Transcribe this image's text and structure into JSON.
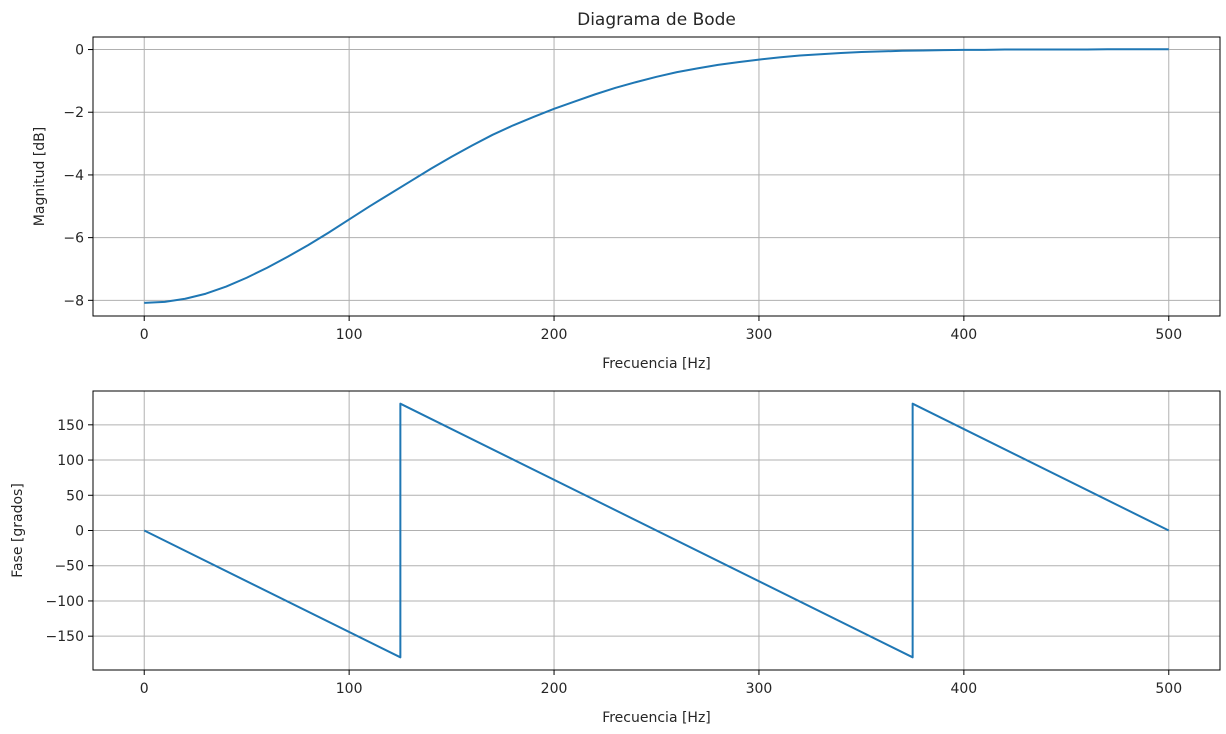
{
  "chart_data": [
    {
      "type": "line",
      "title": "Diagrama de Bode",
      "xlabel": "Frecuencia [Hz]",
      "ylabel": "Magnitud [dB]",
      "xlim": [
        -25,
        525
      ],
      "ylim": [
        -8.5,
        0.4
      ],
      "xticks": [
        0,
        100,
        200,
        300,
        400,
        500
      ],
      "yticks": [
        0,
        -2,
        -4,
        -6,
        -8
      ],
      "ytick_labels": [
        "0",
        "−2",
        "−4",
        "−6",
        "−8"
      ],
      "grid": true,
      "color": "#1f77b4",
      "series": [
        {
          "x": [
            0,
            10,
            20,
            30,
            40,
            50,
            60,
            70,
            80,
            90,
            100,
            110,
            120,
            130,
            140,
            150,
            160,
            170,
            180,
            190,
            200,
            210,
            220,
            230,
            240,
            250,
            260,
            270,
            280,
            290,
            300,
            310,
            320,
            330,
            340,
            350,
            360,
            370,
            380,
            390,
            400,
            410,
            420,
            430,
            440,
            450,
            460,
            470,
            480,
            490,
            500
          ],
          "y": [
            -8.08,
            -8.05,
            -7.95,
            -7.79,
            -7.56,
            -7.28,
            -6.96,
            -6.61,
            -6.24,
            -5.84,
            -5.42,
            -5.0,
            -4.6,
            -4.2,
            -3.8,
            -3.42,
            -3.06,
            -2.72,
            -2.42,
            -2.15,
            -1.89,
            -1.66,
            -1.43,
            -1.22,
            -1.04,
            -0.87,
            -0.72,
            -0.6,
            -0.49,
            -0.4,
            -0.32,
            -0.25,
            -0.19,
            -0.15,
            -0.11,
            -0.08,
            -0.06,
            -0.04,
            -0.03,
            -0.02,
            -0.01,
            -0.01,
            0.0,
            0.0,
            0.0,
            0.0,
            0.0,
            0.01,
            0.01,
            0.01,
            0.01
          ]
        }
      ]
    },
    {
      "type": "line",
      "title": "",
      "xlabel": "Frecuencia [Hz]",
      "ylabel": "Fase [grados]",
      "xlim": [
        -25,
        525
      ],
      "ylim": [
        -198,
        198
      ],
      "xticks": [
        0,
        100,
        200,
        300,
        400,
        500
      ],
      "yticks": [
        150,
        100,
        50,
        0,
        -50,
        -100,
        -150
      ],
      "ytick_labels": [
        "150",
        "100",
        "50",
        "0",
        "−50",
        "−100",
        "−150"
      ],
      "grid": true,
      "color": "#1f77b4",
      "series": [
        {
          "x": [
            0,
            125,
            125,
            375,
            375,
            500
          ],
          "y": [
            0,
            -180,
            180,
            -180,
            180,
            0
          ]
        }
      ]
    }
  ]
}
